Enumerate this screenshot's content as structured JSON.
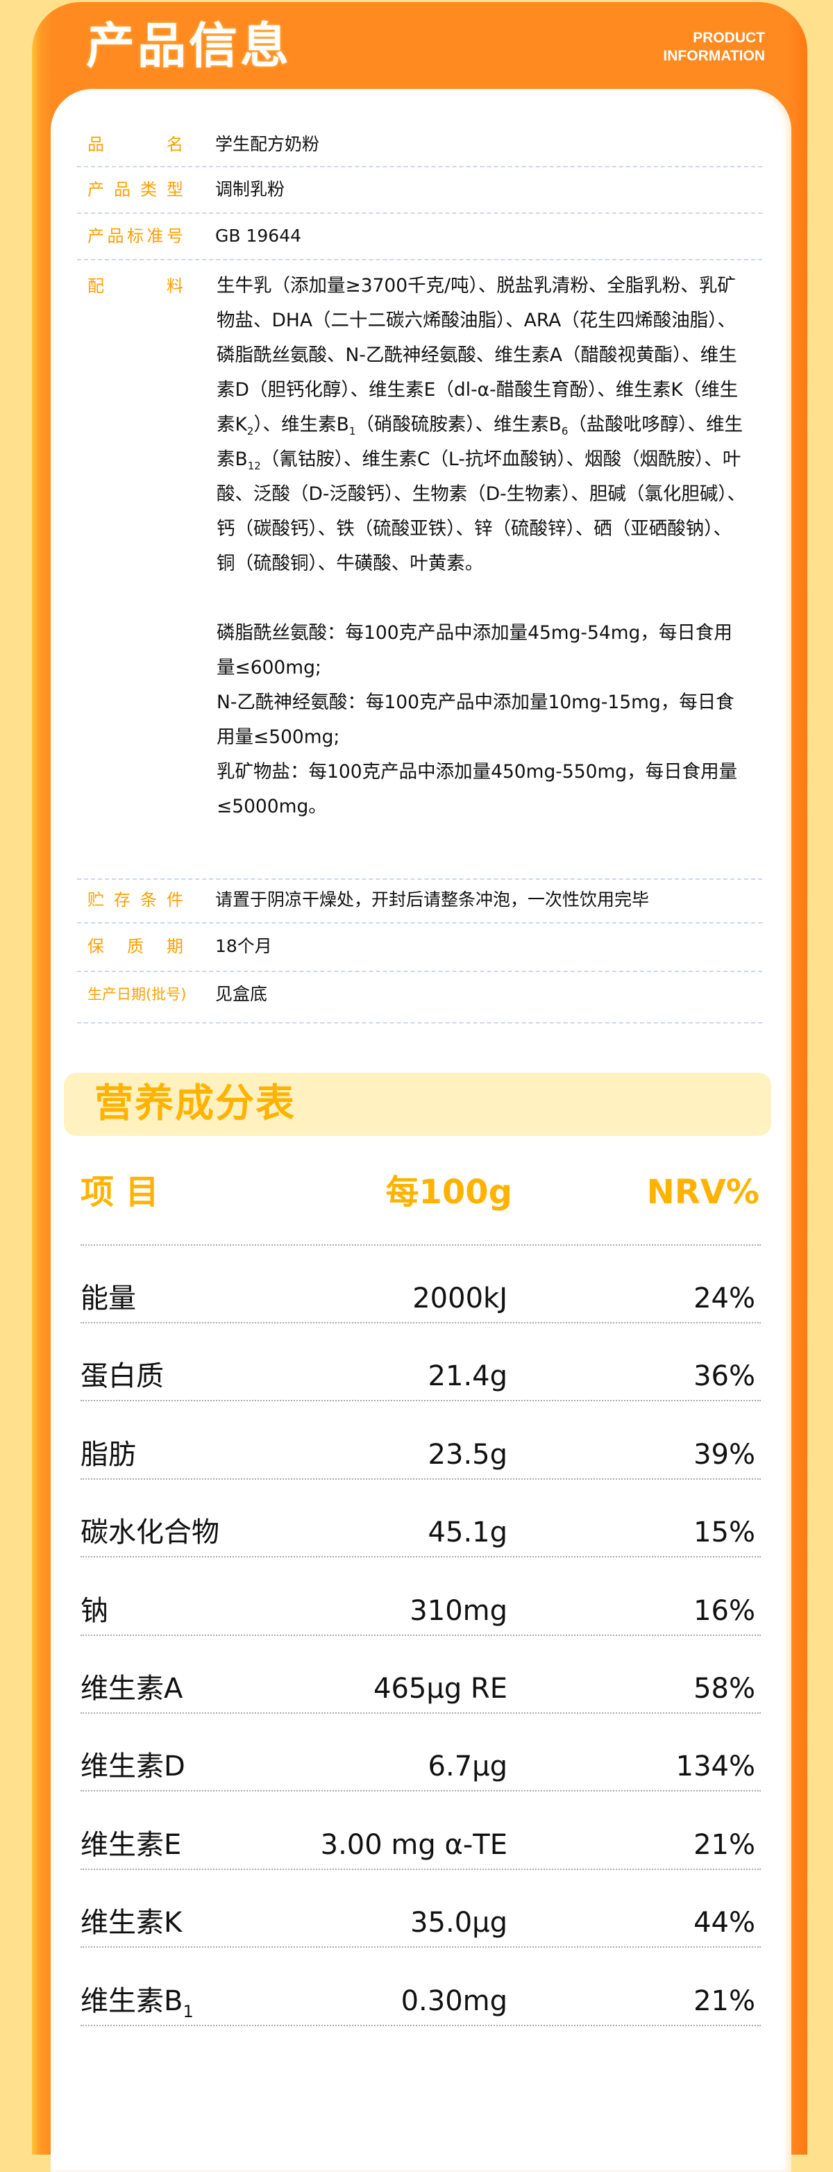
{
  "header": {
    "title": "产品信息",
    "title_en_line1": "PRODUCT",
    "title_en_line2": "INFORMATION"
  },
  "info": {
    "name": {
      "label": "品名",
      "value": "学生配方奶粉"
    },
    "type": {
      "label": "产品类型",
      "value": "调制乳粉"
    },
    "standard": {
      "label": "产品标准号",
      "value": "GB 19644"
    },
    "ingredients": {
      "label": "配料",
      "segments": [
        "生牛乳（添加量≥3700千克/吨）、脱盐乳清粉、全脂乳粉、乳矿物盐、DHA（二十二碳六烯酸油脂）、ARA（花生四烯酸油脂）、磷脂酰丝氨酸、N-乙酰神经氨酸、维生素A（醋酸视黄酯）、维生素D（胆钙化醇）、维生素E（dl-α-醋酸生育酚）、维生素K（维生素K",
        "2",
        "）、维生素B",
        "1",
        "（硝酸硫胺素）、维生素B",
        "6",
        "（盐酸吡哆醇）、维生素B",
        "12",
        "（氰钴胺）、维生素C（L-抗坏血酸钠）、烟酸（烟酰胺）、叶酸、泛酸（D-泛酸钙）、生物素（D-生物素）、胆碱（氯化胆碱）、钙（碳酸钙）、铁（硫酸亚铁）、锌（硫酸锌）、硒（亚硒酸钠）、铜（硫酸铜）、牛磺酸、叶黄素。"
      ],
      "notes": [
        "磷脂酰丝氨酸：每100克产品中添加量45mg-54mg，每日食用量≤600mg;",
        "N-乙酰神经氨酸：每100克产品中添加量10mg-15mg，每日食用量≤500mg;",
        "乳矿物盐：每100克产品中添加量450mg-550mg，每日食用量≤5000mg。"
      ]
    },
    "storage": {
      "label": "贮存条件",
      "value": "请置于阴凉干燥处，开封后请整条冲泡，一次性饮用完毕"
    },
    "shelf_life": {
      "label": "保质期",
      "value": "18个月"
    },
    "production_date": {
      "label": "生产日期(批号)",
      "value": "见盒底"
    }
  },
  "nutrition": {
    "title": "营养成分表",
    "headers": [
      "项 目",
      "每100g",
      "NRV%"
    ],
    "rows": [
      {
        "name": "能量",
        "sub": "",
        "per100g": "2000kJ",
        "nrv": "24%"
      },
      {
        "name": "蛋白质",
        "sub": "",
        "per100g": "21.4g",
        "nrv": "36%"
      },
      {
        "name": "脂肪",
        "sub": "",
        "per100g": "23.5g",
        "nrv": "39%"
      },
      {
        "name": "碳水化合物",
        "sub": "",
        "per100g": "45.1g",
        "nrv": "15%"
      },
      {
        "name": "钠",
        "sub": "",
        "per100g": "310mg",
        "nrv": "16%"
      },
      {
        "name": "维生素A",
        "sub": "",
        "per100g": "465μg RE",
        "nrv": "58%"
      },
      {
        "name": "维生素D",
        "sub": "",
        "per100g": "6.7μg",
        "nrv": "134%"
      },
      {
        "name": "维生素E",
        "sub": "",
        "per100g": "3.00 mg α-TE",
        "nrv": "21%"
      },
      {
        "name": "维生素K",
        "sub": "",
        "per100g": "35.0μg",
        "nrv": "44%"
      },
      {
        "name": "维生素B",
        "sub": "1",
        "per100g": "0.30mg",
        "nrv": "21%"
      }
    ]
  },
  "colors": {
    "background": "#FFE08C",
    "orange": "#FF8A20",
    "label": "#FFA000",
    "nutrition_accent": "#FFB300",
    "nutrition_bar": "#FFF1C0"
  }
}
